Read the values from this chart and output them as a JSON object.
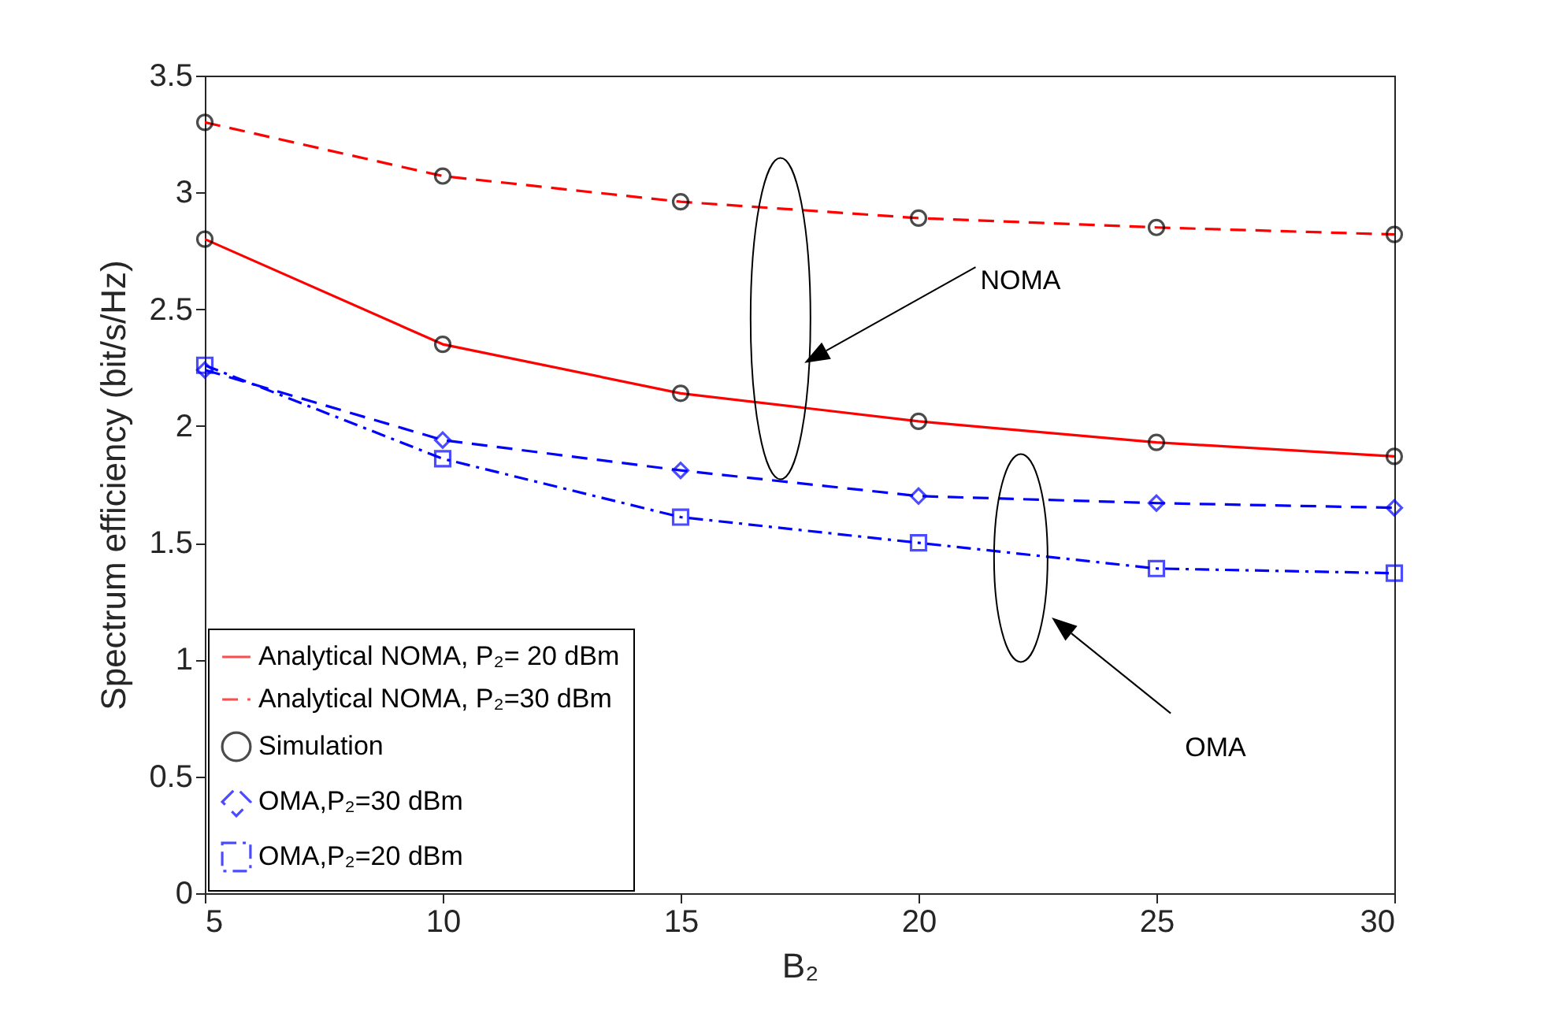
{
  "chart_data": {
    "type": "line",
    "xlabel": "B₂",
    "ylabel": "Spectrum efficiency (bit/s/Hz)",
    "x": [
      5,
      10,
      15,
      20,
      25,
      30
    ],
    "xlim": [
      5,
      30
    ],
    "xticks": [
      5,
      10,
      15,
      20,
      25,
      30
    ],
    "ylim": [
      0,
      3.5
    ],
    "yticks": [
      0,
      0.5,
      1,
      1.5,
      2,
      2.5,
      3,
      3.5
    ],
    "grid": false,
    "legend": "bottom left",
    "series": [
      {
        "name": "Analytical NOMA, P₂= 20 dBm",
        "color": "#ff0000",
        "line_style": "solid",
        "marker": "none",
        "values": [
          2.8,
          2.35,
          2.14,
          2.02,
          1.93,
          1.87
        ]
      },
      {
        "name": "Analytical NOMA, P₂=30 dBm",
        "color": "#ff0000",
        "line_style": "dashed",
        "marker": "none",
        "values": [
          3.3,
          3.07,
          2.96,
          2.89,
          2.85,
          2.82
        ]
      },
      {
        "name": "Simulation",
        "type": "scatter",
        "color": "#000000",
        "marker": "circle",
        "x": [
          5,
          10,
          15,
          20,
          25,
          30,
          5,
          10,
          15,
          20,
          25,
          30
        ],
        "values": [
          2.8,
          2.35,
          2.14,
          2.02,
          1.93,
          1.87,
          3.3,
          3.07,
          2.96,
          2.89,
          2.85,
          2.82
        ]
      },
      {
        "name": "OMA,P₂=30 dBm",
        "color": "#0000ff",
        "line_style": "dashed",
        "marker": "diamond",
        "values": [
          2.24,
          1.94,
          1.81,
          1.7,
          1.67,
          1.65
        ]
      },
      {
        "name": "OMA,P₂=20 dBm",
        "color": "#0000ff",
        "line_style": "dashdot",
        "marker": "square",
        "values": [
          2.26,
          1.86,
          1.61,
          1.5,
          1.39,
          1.37
        ]
      }
    ],
    "annotations": [
      "NOMA",
      "OMA"
    ]
  }
}
